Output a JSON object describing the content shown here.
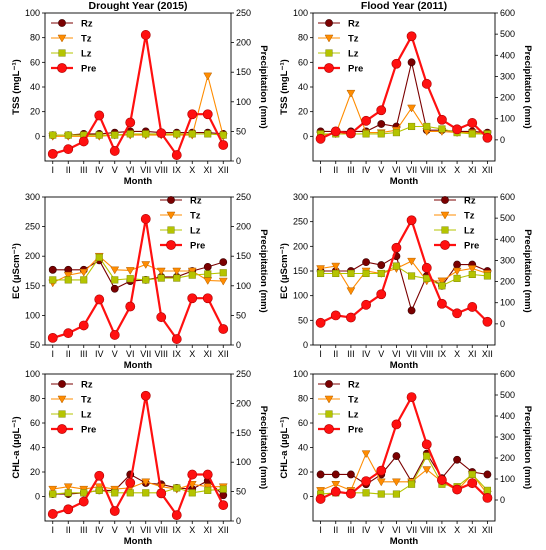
{
  "colors": {
    "Rz": "#7b0000",
    "Tz": "#ff8c00",
    "Lz": "#b5c400",
    "Pre": "#ff1010"
  },
  "chart_data": [
    {
      "type": "line",
      "id": "tss-drought",
      "title": "Drought Year (2015)",
      "xlabel": "Month",
      "ylabel": "TSS (mgL⁻¹)",
      "y2label": "Precipitation (mm)",
      "categories": [
        "I",
        "II",
        "III",
        "IV",
        "V",
        "VI",
        "VII",
        "VIII",
        "IX",
        "X",
        "XI",
        "XII"
      ],
      "ylim": [
        -20,
        100
      ],
      "yticks": [
        0,
        20,
        40,
        60,
        80,
        100
      ],
      "y2lim": [
        0,
        250
      ],
      "y2ticks": [
        0,
        50,
        100,
        150,
        200,
        250
      ],
      "legend": "top-left",
      "series": [
        {
          "name": "Rz",
          "axis": "left",
          "values": [
            1,
            1,
            2,
            2,
            3,
            4,
            4,
            3,
            3,
            3,
            3,
            2
          ]
        },
        {
          "name": "Tz",
          "axis": "left",
          "values": [
            0,
            0,
            0,
            0,
            1,
            1,
            1,
            1,
            1,
            1,
            49,
            0
          ]
        },
        {
          "name": "Lz",
          "axis": "left",
          "values": [
            1,
            1,
            1,
            1,
            1,
            2,
            2,
            2,
            2,
            2,
            2,
            1
          ]
        },
        {
          "name": "Pre",
          "axis": "right",
          "values": [
            12,
            20,
            33,
            77,
            17,
            65,
            213,
            47,
            10,
            79,
            79,
            27
          ]
        }
      ]
    },
    {
      "type": "line",
      "id": "tss-flood",
      "title": "Flood Year (2011)",
      "xlabel": "Month",
      "ylabel": "TSS (mgL⁻¹)",
      "y2label": "Precipitation (mm)",
      "categories": [
        "I",
        "II",
        "III",
        "IV",
        "V",
        "VI",
        "VII",
        "VIII",
        "IX",
        "X",
        "XI",
        "XII"
      ],
      "ylim": [
        -20,
        100
      ],
      "yticks": [
        0,
        20,
        40,
        60,
        80,
        100
      ],
      "y2lim": [
        -100,
        600
      ],
      "y2ticks": [
        0,
        100,
        200,
        300,
        400,
        500,
        600
      ],
      "legend": "top-left",
      "series": [
        {
          "name": "Rz",
          "axis": "left",
          "values": [
            4,
            4,
            4,
            4,
            10,
            8,
            60,
            5,
            5,
            4,
            4,
            3
          ]
        },
        {
          "name": "Tz",
          "axis": "left",
          "values": [
            1,
            2,
            35,
            3,
            3,
            5,
            23,
            4,
            4,
            3,
            3,
            2
          ]
        },
        {
          "name": "Lz",
          "axis": "left",
          "values": [
            2,
            2,
            2,
            2,
            2,
            3,
            8,
            8,
            6,
            3,
            2,
            2
          ]
        },
        {
          "name": "Pre",
          "axis": "right",
          "values": [
            5,
            40,
            30,
            90,
            140,
            360,
            490,
            265,
            95,
            50,
            80,
            10
          ]
        }
      ]
    },
    {
      "type": "line",
      "id": "ec-drought",
      "xlabel": "Month",
      "ylabel": "EC (µScm⁻¹)",
      "y2label": "Precipitation (mm)",
      "categories": [
        "I",
        "II",
        "III",
        "IV",
        "V",
        "VI",
        "VII",
        "VIII",
        "IX",
        "X",
        "XI",
        "XII"
      ],
      "ylim": [
        50,
        300
      ],
      "yticks": [
        50,
        100,
        150,
        200,
        250,
        300
      ],
      "y2lim": [
        0,
        250
      ],
      "y2ticks": [
        0,
        50,
        100,
        150,
        200,
        250
      ],
      "legend": "top-right",
      "series": [
        {
          "name": "Rz",
          "axis": "left",
          "values": [
            177,
            177,
            177,
            193,
            145,
            158,
            160,
            165,
            165,
            175,
            182,
            190
          ]
        },
        {
          "name": "Tz",
          "axis": "left",
          "values": [
            155,
            168,
            173,
            200,
            177,
            176,
            186,
            175,
            175,
            175,
            159,
            158
          ]
        },
        {
          "name": "Lz",
          "axis": "left",
          "values": [
            160,
            160,
            160,
            198,
            160,
            162,
            160,
            163,
            163,
            168,
            170,
            172
          ]
        },
        {
          "name": "Pre",
          "axis": "right",
          "values": [
            12,
            20,
            33,
            77,
            17,
            65,
            213,
            47,
            10,
            79,
            79,
            27
          ]
        }
      ]
    },
    {
      "type": "line",
      "id": "ec-flood",
      "xlabel": "Month",
      "ylabel": "EC (µScm⁻¹)",
      "y2label": "Precipitation (mm)",
      "categories": [
        "I",
        "II",
        "III",
        "IV",
        "V",
        "VI",
        "VII",
        "VIII",
        "IX",
        "X",
        "XI",
        "XII"
      ],
      "ylim": [
        0,
        300
      ],
      "yticks": [
        0,
        50,
        100,
        150,
        200,
        250,
        300
      ],
      "y2lim": [
        -100,
        600
      ],
      "y2ticks": [
        0,
        100,
        200,
        300,
        400,
        500,
        600
      ],
      "legend": "top-right",
      "series": [
        {
          "name": "Rz",
          "axis": "left",
          "values": [
            150,
            150,
            150,
            168,
            162,
            180,
            70,
            140,
            120,
            163,
            163,
            150
          ]
        },
        {
          "name": "Tz",
          "axis": "left",
          "values": [
            155,
            160,
            110,
            150,
            145,
            155,
            170,
            130,
            130,
            150,
            155,
            145
          ]
        },
        {
          "name": "Lz",
          "axis": "left",
          "values": [
            145,
            145,
            145,
            145,
            145,
            160,
            140,
            135,
            120,
            135,
            143,
            140
          ]
        },
        {
          "name": "Pre",
          "axis": "right",
          "values": [
            5,
            40,
            30,
            90,
            140,
            360,
            490,
            265,
            95,
            50,
            80,
            10
          ]
        }
      ]
    },
    {
      "type": "line",
      "id": "chla-drought",
      "xlabel": "Month",
      "ylabel": "CHL-a (µgL⁻¹)",
      "y2label": "Precipitation (mm)",
      "categories": [
        "I",
        "II",
        "III",
        "IV",
        "V",
        "VI",
        "VII",
        "VIII",
        "IX",
        "X",
        "XI",
        "XII"
      ],
      "ylim": [
        -20,
        100
      ],
      "yticks": [
        0,
        20,
        40,
        60,
        80,
        100
      ],
      "y2lim": [
        0,
        250
      ],
      "y2ticks": [
        0,
        50,
        100,
        150,
        200,
        250
      ],
      "legend": "top-left",
      "series": [
        {
          "name": "Rz",
          "axis": "left",
          "values": [
            2,
            2,
            3,
            5,
            5,
            18,
            11,
            10,
            7,
            6,
            13,
            1
          ]
        },
        {
          "name": "Tz",
          "axis": "left",
          "values": [
            6,
            8,
            6,
            8,
            6,
            7,
            12,
            8,
            6,
            10,
            8,
            8
          ]
        },
        {
          "name": "Lz",
          "axis": "left",
          "values": [
            2,
            3,
            3,
            5,
            3,
            3,
            3,
            3,
            7,
            3,
            5,
            6
          ]
        },
        {
          "name": "Pre",
          "axis": "right",
          "values": [
            12,
            20,
            33,
            77,
            17,
            65,
            213,
            47,
            10,
            79,
            79,
            27
          ]
        }
      ]
    },
    {
      "type": "line",
      "id": "chla-flood",
      "xlabel": "Month",
      "ylabel": "CHL-a (µgL⁻¹)",
      "y2label": "Precipitation (mm)",
      "categories": [
        "I",
        "II",
        "III",
        "IV",
        "V",
        "VI",
        "VII",
        "VIII",
        "IX",
        "X",
        "XI",
        "XII"
      ],
      "ylim": [
        -20,
        100
      ],
      "yticks": [
        0,
        20,
        40,
        60,
        80,
        100
      ],
      "y2lim": [
        -100,
        600
      ],
      "y2ticks": [
        0,
        100,
        200,
        300,
        400,
        500,
        600
      ],
      "legend": "top-left",
      "series": [
        {
          "name": "Rz",
          "axis": "left",
          "values": [
            18,
            18,
            18,
            10,
            18,
            33,
            12,
            35,
            15,
            30,
            20,
            18
          ]
        },
        {
          "name": "Tz",
          "axis": "left",
          "values": [
            5,
            10,
            5,
            35,
            12,
            12,
            12,
            22,
            12,
            5,
            18,
            2
          ]
        },
        {
          "name": "Lz",
          "axis": "left",
          "values": [
            2,
            3,
            3,
            3,
            2,
            2,
            10,
            33,
            10,
            8,
            18,
            5
          ]
        },
        {
          "name": "Pre",
          "axis": "right",
          "values": [
            5,
            40,
            30,
            90,
            140,
            360,
            490,
            265,
            95,
            50,
            80,
            10
          ]
        }
      ]
    }
  ]
}
